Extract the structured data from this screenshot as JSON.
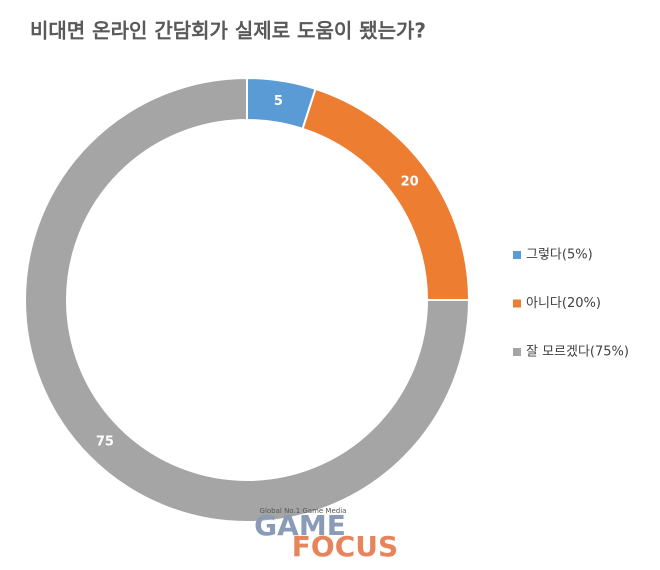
{
  "chart_data": {
    "type": "donut",
    "title": "비대면 온라인 간담회가 실제로 도움이 됐는가?",
    "categories": [
      "그렇다(5%)",
      "아니다(20%)",
      "잘 모르겠다(75%)"
    ],
    "values": [
      5,
      20,
      75
    ],
    "colors": [
      "#5b9bd5",
      "#ed7d31",
      "#a5a5a5"
    ],
    "legend": "right",
    "annotations": [
      "Global No.1 Game Media",
      "GAME",
      "FOCUS"
    ]
  }
}
